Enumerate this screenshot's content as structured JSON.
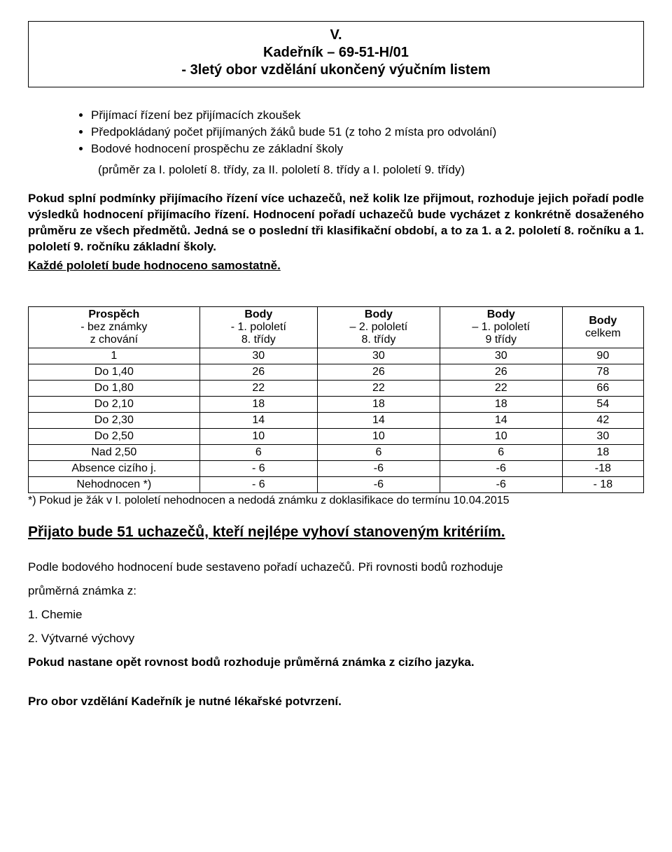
{
  "header": {
    "line1": "V.",
    "line2": "Kadeřník – 69-51-H/01",
    "line3": "- 3letý  obor vzdělání ukončený výučním listem"
  },
  "bullets": [
    "Přijímací řízení bez přijímacích zkoušek",
    "Předpokládaný počet přijímaných žáků bude 51  (z toho 2 místa pro odvolání)",
    "Bodové hodnocení prospěchu ze základní školy"
  ],
  "indent_line": "(průměr za I. pololetí 8. třídy, za  II. pololetí 8. třídy a I. pololetí 9. třídy)",
  "para1_a": "Pokud splní podmínky přijímacího řízení více uchazečů, než kolik lze přijmout, rozhoduje jejich pořadí podle výsledků hodnocení přijímacího řízení. Hodnocení pořadí uchazečů bude vycházet z konkrétně dosaženého průměru ze všech předmětů. Jedná se o poslední tři klasifikační období, a to za 1. a 2. pololetí 8. ročníku a 1. pololetí 9. ročníku základní školy.",
  "para1_b": "Každé pololetí bude hodnoceno samostatně.",
  "table": {
    "headers": {
      "col1": {
        "l1": "Prospěch",
        "l2": "- bez známky",
        "l3": "z chování"
      },
      "col2": {
        "l1": "Body",
        "l2": "-  1. pololetí",
        "l3": "8. třídy"
      },
      "col3": {
        "l1": "Body",
        "l2": "– 2. pololetí",
        "l3": "8. třídy"
      },
      "col4": {
        "l1": "Body",
        "l2": "– 1. pololetí",
        "l3": "9 třídy"
      },
      "col5": {
        "l1": "Body",
        "l2": "celkem",
        "l3": ""
      }
    },
    "rows": [
      {
        "c1": "1",
        "c2": "30",
        "c3": "30",
        "c4": "30",
        "c5": "90"
      },
      {
        "c1": "Do  1,40",
        "c2": "26",
        "c3": "26",
        "c4": "26",
        "c5": "78"
      },
      {
        "c1": "Do 1,80",
        "c2": "22",
        "c3": "22",
        "c4": "22",
        "c5": "66"
      },
      {
        "c1": "Do 2,10",
        "c2": "18",
        "c3": "18",
        "c4": "18",
        "c5": "54"
      },
      {
        "c1": "Do 2,30",
        "c2": "14",
        "c3": "14",
        "c4": "14",
        "c5": "42"
      },
      {
        "c1": "Do 2,50",
        "c2": "10",
        "c3": "10",
        "c4": "10",
        "c5": "30"
      },
      {
        "c1": "Nad 2,50",
        "c2": "6",
        "c3": "6",
        "c4": "6",
        "c5": "18"
      },
      {
        "c1": "Absence cizího j.",
        "c2": "- 6",
        "c3": "-6",
        "c4": "-6",
        "c5": "-18"
      },
      {
        "c1": "Nehodnocen *)",
        "c2": "- 6",
        "c3": "-6",
        "c4": "-6",
        "c5": "- 18"
      }
    ]
  },
  "footnote": "*) Pokud je žák v I. pololetí nehodnocen a nedodá známku z doklasifikace do termínu 10.04.2015",
  "accepted_line": "Přijato bude  51 uchazečů,  kteří nejlépe vyhoví stanoveným kritériím.",
  "order_line": "Podle bodového hodnocení bude sestaveno pořadí uchazečů. Při rovnosti bodů rozhoduje",
  "avg_label": "průměrná známka z:",
  "item1": "1. Chemie",
  "item2": "2. Výtvarné výchovy",
  "tiebreak": "Pokud nastane opět rovnost bodů rozhoduje průměrná známka z cizího jazyka.",
  "final": "Pro obor vzdělání Kadeřník je nutné lékařské potvrzení.",
  "styles": {
    "text_color": "#000000",
    "background_color": "#ffffff",
    "border_color": "#000000",
    "body_fontsize": 16,
    "header_fontsize": 20,
    "big_underline_fontsize": 21,
    "table_col_widths_pct": [
      20,
      20,
      20,
      20,
      20
    ]
  }
}
